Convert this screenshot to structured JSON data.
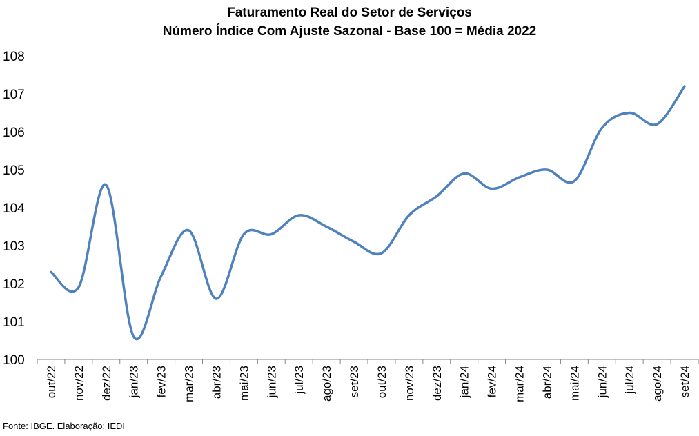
{
  "chart_data": {
    "type": "line",
    "title": "Faturamento Real do Setor de Serviços",
    "subtitle": "Número Índice Com Ajuste Sazonal - Base 100 = Média 2022",
    "xlabel": "",
    "ylabel": "",
    "ylim": [
      100,
      108
    ],
    "yticks": [
      "100",
      "101",
      "102",
      "103",
      "104",
      "105",
      "106",
      "107",
      "108"
    ],
    "grid": false,
    "categories": [
      "out/22",
      "nov/22",
      "dez/22",
      "jan/23",
      "fev/23",
      "mar/23",
      "abr/23",
      "mai/23",
      "jun/23",
      "jul/23",
      "ago/23",
      "set/23",
      "out/23",
      "nov/23",
      "dez/23",
      "jan/24",
      "fev/24",
      "mar/24",
      "abr/24",
      "mai/24",
      "jun/24",
      "jul/24",
      "ago/24",
      "set/24"
    ],
    "series": [
      {
        "color": "#4f81bd",
        "values": [
          102.3,
          101.9,
          104.6,
          100.6,
          102.2,
          103.4,
          101.6,
          103.3,
          103.3,
          103.8,
          103.5,
          103.1,
          102.8,
          103.8,
          104.3,
          104.9,
          104.5,
          104.8,
          105.0,
          104.7,
          106.1,
          106.5,
          106.2,
          107.2
        ]
      }
    ]
  },
  "footer": {
    "source": "Fonte: IBGE. Elaboração: IEDI"
  }
}
